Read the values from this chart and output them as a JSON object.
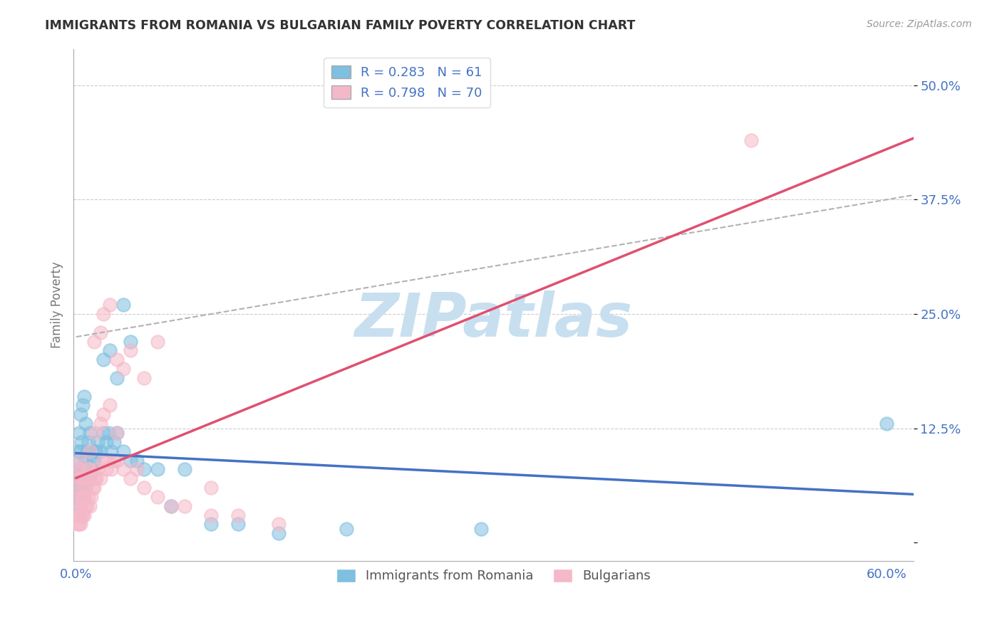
{
  "title": "IMMIGRANTS FROM ROMANIA VS BULGARIAN FAMILY POVERTY CORRELATION CHART",
  "source": "Source: ZipAtlas.com",
  "ylabel_label": "Family Poverty",
  "xlim": [
    -0.002,
    0.62
  ],
  "ylim": [
    -0.02,
    0.54
  ],
  "xtick_positions": [
    0.0,
    0.1,
    0.2,
    0.3,
    0.4,
    0.5,
    0.6
  ],
  "xtick_labels": [
    "0.0%",
    "",
    "",
    "",
    "",
    "",
    "60.0%"
  ],
  "ytick_positions": [
    0.0,
    0.125,
    0.25,
    0.375,
    0.5
  ],
  "ytick_labels": [
    "",
    "12.5%",
    "25.0%",
    "37.5%",
    "50.0%"
  ],
  "series1_label": "Immigrants from Romania",
  "series1_color": "#7fbfdf",
  "series1_line_color": "#4472c4",
  "series1_R": "0.283",
  "series1_N": "61",
  "series2_label": "Bulgarians",
  "series2_color": "#f5b8c8",
  "series2_line_color": "#e05070",
  "series2_R": "0.798",
  "series2_N": "70",
  "watermark_text": "ZIPatlas",
  "watermark_color": "#c8dff0",
  "background_color": "#ffffff",
  "grid_color": "#cccccc",
  "tick_color": "#4472c4",
  "title_color": "#333333",
  "legend_text_color": "#4472c4",
  "dashed_line_color": "#9abcd8",
  "series1_x": [
    0.001,
    0.001,
    0.001,
    0.001,
    0.002,
    0.002,
    0.002,
    0.002,
    0.003,
    0.003,
    0.003,
    0.003,
    0.004,
    0.004,
    0.004,
    0.005,
    0.005,
    0.005,
    0.006,
    0.006,
    0.006,
    0.007,
    0.007,
    0.007,
    0.008,
    0.008,
    0.009,
    0.009,
    0.01,
    0.01,
    0.011,
    0.012,
    0.013,
    0.014,
    0.015,
    0.016,
    0.018,
    0.02,
    0.022,
    0.024,
    0.026,
    0.028,
    0.03,
    0.035,
    0.04,
    0.045,
    0.05,
    0.06,
    0.07,
    0.08,
    0.1,
    0.12,
    0.15,
    0.2,
    0.3,
    0.02,
    0.025,
    0.03,
    0.035,
    0.04,
    0.6
  ],
  "series1_y": [
    0.05,
    0.07,
    0.09,
    0.1,
    0.04,
    0.06,
    0.08,
    0.12,
    0.05,
    0.07,
    0.1,
    0.14,
    0.06,
    0.08,
    0.11,
    0.05,
    0.07,
    0.15,
    0.05,
    0.08,
    0.16,
    0.06,
    0.09,
    0.13,
    0.07,
    0.1,
    0.07,
    0.11,
    0.07,
    0.12,
    0.08,
    0.09,
    0.09,
    0.1,
    0.1,
    0.11,
    0.1,
    0.12,
    0.11,
    0.12,
    0.1,
    0.11,
    0.12,
    0.1,
    0.09,
    0.09,
    0.08,
    0.08,
    0.04,
    0.08,
    0.02,
    0.02,
    0.01,
    0.015,
    0.015,
    0.2,
    0.21,
    0.18,
    0.26,
    0.22,
    0.13
  ],
  "series2_x": [
    0.001,
    0.001,
    0.001,
    0.001,
    0.001,
    0.002,
    0.002,
    0.002,
    0.002,
    0.002,
    0.003,
    0.003,
    0.003,
    0.003,
    0.004,
    0.004,
    0.004,
    0.005,
    0.005,
    0.005,
    0.006,
    0.006,
    0.007,
    0.007,
    0.008,
    0.008,
    0.009,
    0.009,
    0.01,
    0.01,
    0.011,
    0.012,
    0.013,
    0.014,
    0.015,
    0.016,
    0.018,
    0.02,
    0.022,
    0.024,
    0.026,
    0.028,
    0.03,
    0.035,
    0.04,
    0.045,
    0.05,
    0.06,
    0.07,
    0.08,
    0.1,
    0.1,
    0.12,
    0.15,
    0.013,
    0.018,
    0.02,
    0.025,
    0.03,
    0.035,
    0.04,
    0.05,
    0.06,
    0.01,
    0.014,
    0.018,
    0.02,
    0.025,
    0.03,
    0.5
  ],
  "series2_y": [
    0.02,
    0.03,
    0.04,
    0.06,
    0.08,
    0.02,
    0.03,
    0.05,
    0.07,
    0.09,
    0.02,
    0.04,
    0.06,
    0.08,
    0.03,
    0.05,
    0.07,
    0.03,
    0.05,
    0.07,
    0.03,
    0.05,
    0.04,
    0.06,
    0.04,
    0.07,
    0.05,
    0.08,
    0.04,
    0.08,
    0.05,
    0.06,
    0.06,
    0.07,
    0.07,
    0.08,
    0.07,
    0.09,
    0.08,
    0.09,
    0.08,
    0.09,
    0.09,
    0.08,
    0.07,
    0.08,
    0.06,
    0.05,
    0.04,
    0.04,
    0.03,
    0.06,
    0.03,
    0.02,
    0.22,
    0.23,
    0.25,
    0.26,
    0.2,
    0.19,
    0.21,
    0.18,
    0.22,
    0.1,
    0.12,
    0.13,
    0.14,
    0.15,
    0.12,
    0.44
  ]
}
